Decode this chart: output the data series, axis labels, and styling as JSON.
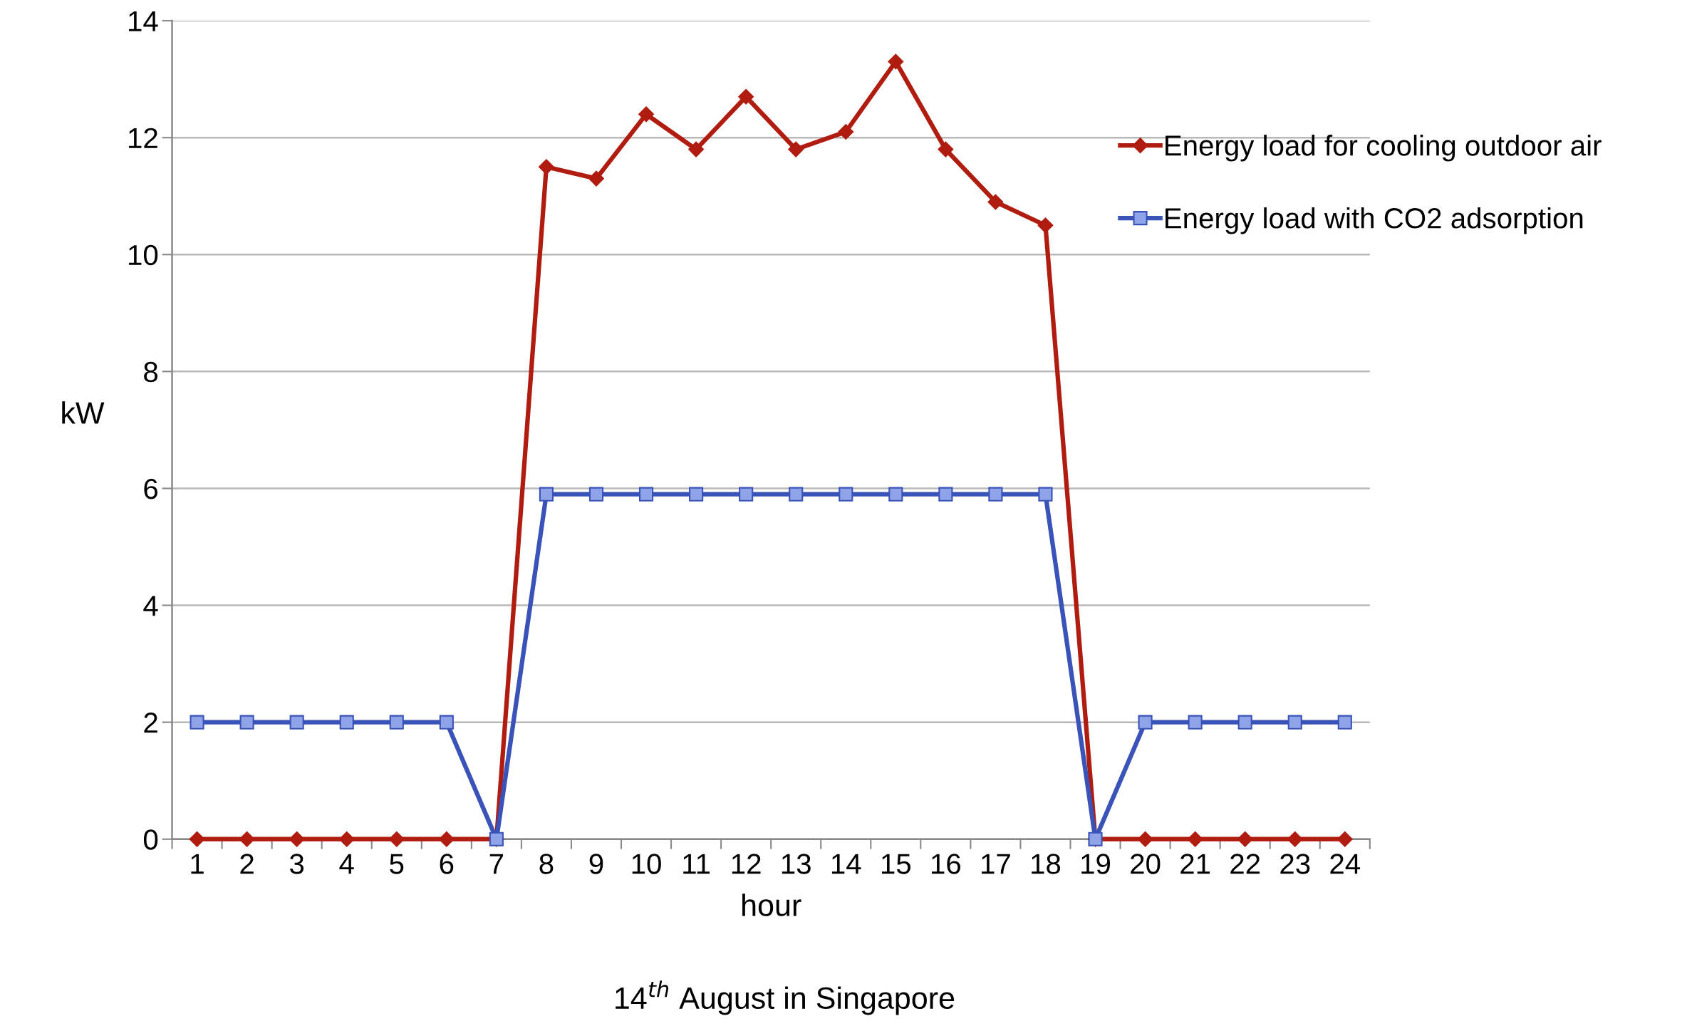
{
  "chart_data": {
    "type": "line",
    "xlabel": "hour",
    "ylabel": "kW",
    "categories": [
      "1",
      "2",
      "3",
      "4",
      "5",
      "6",
      "7",
      "8",
      "9",
      "10",
      "11",
      "12",
      "13",
      "14",
      "15",
      "16",
      "17",
      "18",
      "19",
      "20",
      "21",
      "22",
      "23",
      "24"
    ],
    "series": [
      {
        "name": "Energy load for cooling outdoor air",
        "color": "#b01c10",
        "marker": "diamond",
        "values": [
          0,
          0,
          0,
          0,
          0,
          0,
          0,
          11.5,
          11.3,
          12.4,
          11.8,
          12.7,
          11.8,
          12.1,
          13.3,
          11.8,
          10.9,
          10.5,
          0,
          0,
          0,
          0,
          0,
          0
        ]
      },
      {
        "name": "Energy load with CO2 adsorption",
        "color": "#3a53b8",
        "marker": "square",
        "values": [
          2.0,
          2.0,
          2.0,
          2.0,
          2.0,
          2.0,
          0,
          5.9,
          5.9,
          5.9,
          5.9,
          5.9,
          5.9,
          5.9,
          5.9,
          5.9,
          5.9,
          5.9,
          0,
          2.0,
          2.0,
          2.0,
          2.0,
          2.0
        ]
      }
    ],
    "ylim": [
      0,
      14
    ],
    "yticks": [
      0,
      2,
      4,
      6,
      8,
      10,
      12,
      14
    ],
    "grid": "y",
    "legend": "right",
    "line_style": "solid",
    "annotations": [
      "14$^{th}$ August in Singapore"
    ]
  }
}
